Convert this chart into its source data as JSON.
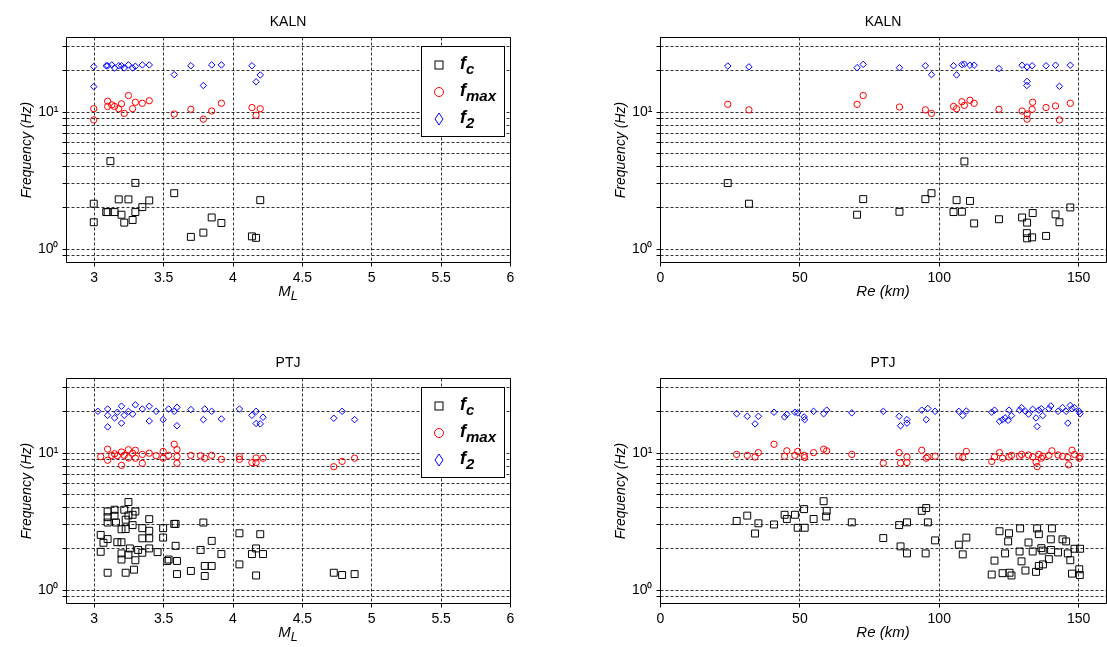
{
  "chart_data": [
    {
      "type": "scatter",
      "title": "KALN",
      "xlabel": "M$_{L}$",
      "ylabel": "Frequency (Hz)",
      "xlim": [
        2.8,
        6
      ],
      "xticks": [
        3,
        3.5,
        4,
        4.5,
        5,
        5.5,
        6
      ],
      "ylim": [
        0.8,
        35
      ],
      "yticks": [
        {
          "value": 0.9,
          "label": null
        },
        {
          "value": 1,
          "label": "10⁰"
        },
        {
          "value": 2,
          "label": null
        },
        {
          "value": 3,
          "label": null
        },
        {
          "value": 4,
          "label": null
        },
        {
          "value": 5,
          "label": null
        },
        {
          "value": 6,
          "label": null
        },
        {
          "value": 7,
          "label": null
        },
        {
          "value": 8,
          "label": null
        },
        {
          "value": 9,
          "label": null
        },
        {
          "value": 10,
          "label": "10¹"
        },
        {
          "value": 20,
          "label": null
        },
        {
          "value": 30,
          "label": null
        }
      ],
      "log": true,
      "grid": true,
      "legend": "top right",
      "series": [
        {
          "name": "f$_{c}$",
          "color": "#000000",
          "marker": "square",
          "x": [
            3.0,
            3.0,
            3.12,
            3.09,
            3.1,
            3.15,
            3.18,
            3.25,
            3.2,
            3.22,
            3.28,
            3.3,
            3.3,
            3.35,
            3.4,
            3.58,
            3.7,
            3.79,
            3.85,
            3.92,
            4.14,
            4.17,
            4.2
          ],
          "values": [
            2.13,
            1.56,
            4.35,
            1.85,
            1.85,
            1.85,
            2.29,
            2.29,
            1.77,
            1.55,
            1.62,
            3.02,
            1.85,
            2.01,
            2.25,
            2.54,
            1.22,
            1.31,
            1.69,
            1.54,
            1.23,
            1.2,
            2.26
          ]
        },
        {
          "name": "f$_{max}$",
          "color": "#ff0000",
          "marker": "circle",
          "x": [
            3.0,
            3.0,
            3.1,
            3.1,
            3.13,
            3.15,
            3.18,
            3.2,
            3.22,
            3.25,
            3.28,
            3.3,
            3.35,
            3.4,
            3.58,
            3.7,
            3.79,
            3.85,
            3.92,
            4.14,
            4.17,
            4.2
          ],
          "values": [
            10.5,
            8.7,
            11.9,
            10.9,
            11.2,
            10.9,
            10.5,
            11.4,
            9.7,
            13.1,
            10.5,
            11.7,
            11.5,
            12.0,
            9.6,
            10.4,
            8.8,
            10.1,
            11.5,
            10.7,
            9.4,
            10.5
          ]
        },
        {
          "name": "f$_{2}$",
          "color": "#0000ff",
          "marker": "diamond",
          "x": [
            3.0,
            3.0,
            3.09,
            3.1,
            3.13,
            3.15,
            3.18,
            3.2,
            3.22,
            3.25,
            3.28,
            3.3,
            3.35,
            3.4,
            3.58,
            3.7,
            3.79,
            3.85,
            3.92,
            4.14,
            4.17,
            4.2
          ],
          "values": [
            21.3,
            15.2,
            21.6,
            21.6,
            21.9,
            20.8,
            21.6,
            21.6,
            20.8,
            21.9,
            20.8,
            21.4,
            21.9,
            21.9,
            18.6,
            21.6,
            15.5,
            21.9,
            21.9,
            21.6,
            16.5,
            18.5
          ]
        }
      ]
    },
    {
      "type": "scatter",
      "title": "KALN",
      "xlabel": "Re  (km)",
      "ylabel": "Frequency (Hz)",
      "xlim": [
        0,
        160
      ],
      "xticks": [
        0,
        50,
        100,
        150
      ],
      "ylim": [
        0.8,
        35
      ],
      "yticks": [
        {
          "value": 0.9,
          "label": null
        },
        {
          "value": 1,
          "label": "10⁰"
        },
        {
          "value": 2,
          "label": null
        },
        {
          "value": 3,
          "label": null
        },
        {
          "value": 4,
          "label": null
        },
        {
          "value": 5,
          "label": null
        },
        {
          "value": 6,
          "label": null
        },
        {
          "value": 7,
          "label": null
        },
        {
          "value": 8,
          "label": null
        },
        {
          "value": 9,
          "label": null
        },
        {
          "value": 10,
          "label": "10¹"
        },
        {
          "value": 20,
          "label": null
        },
        {
          "value": 30,
          "label": null
        }
      ],
      "log": true,
      "grid": true,
      "series": [
        {
          "color": "#000000",
          "marker": "square",
          "x": [
            24.3,
            31.9,
            70.7,
            72.9,
            85.9,
            95.2,
            97.4,
            105.3,
            106.4,
            108.3,
            109.2,
            111.2,
            112.7,
            121.6,
            129.9,
            131.7,
            131.6,
            131.7,
            133.5,
            133.7,
            138.5,
            141.9,
            143.3,
            147.2
          ],
          "values": [
            3.01,
            2.13,
            1.77,
            2.3,
            1.86,
            2.3,
            2.54,
            1.85,
            2.26,
            1.86,
            4.33,
            2.23,
            1.53,
            1.64,
            1.69,
            1.55,
            1.3,
            1.19,
            1.21,
            1.82,
            1.24,
            1.78,
            1.56,
            2.0
          ]
        },
        {
          "color": "#ff0000",
          "marker": "circle",
          "x": [
            24.3,
            31.9,
            70.7,
            72.9,
            85.9,
            95.2,
            97.4,
            105.3,
            106.4,
            108.3,
            109.2,
            111.2,
            112.7,
            121.6,
            129.9,
            131.7,
            131.7,
            133.7,
            133.5,
            138.5,
            141.9,
            143.3,
            147.2
          ],
          "values": [
            11.3,
            10.3,
            11.3,
            13.1,
            10.8,
            10.3,
            9.7,
            10.9,
            10.5,
            11.8,
            11.1,
            12.1,
            11.5,
            10.4,
            10.1,
            9.6,
            8.8,
            11.7,
            10.4,
            10.7,
            11.0,
            8.7,
            11.5
          ]
        },
        {
          "color": "#0000ff",
          "marker": "diamond",
          "x": [
            24.3,
            31.9,
            70.7,
            72.9,
            85.9,
            95.2,
            97.4,
            105.3,
            106.4,
            108.3,
            109.2,
            111.2,
            112.7,
            121.6,
            129.9,
            131.7,
            131.7,
            131.6,
            133.5,
            138.5,
            141.9,
            143.3,
            147.2
          ],
          "values": [
            21.5,
            21.2,
            20.9,
            22.1,
            20.9,
            21.6,
            18.6,
            21.6,
            18.5,
            22.0,
            22.2,
            21.8,
            21.8,
            20.6,
            21.8,
            21.2,
            16.6,
            15.5,
            21.6,
            21.6,
            21.8,
            15.3,
            21.8
          ]
        }
      ]
    },
    {
      "type": "scatter",
      "title": "PTJ",
      "xlabel": "M$_{L}$",
      "ylabel": "Frequency (Hz)",
      "xlim": [
        2.8,
        6
      ],
      "xticks": [
        3,
        3.5,
        4,
        4.5,
        5,
        5.5,
        6
      ],
      "ylim": [
        0.8,
        35
      ],
      "yticks": [
        {
          "value": 0.9,
          "label": null
        },
        {
          "value": 1,
          "label": "10⁰"
        },
        {
          "value": 2,
          "label": null
        },
        {
          "value": 3,
          "label": null
        },
        {
          "value": 4,
          "label": null
        },
        {
          "value": 5,
          "label": null
        },
        {
          "value": 6,
          "label": null
        },
        {
          "value": 7,
          "label": null
        },
        {
          "value": 8,
          "label": null
        },
        {
          "value": 9,
          "label": null
        },
        {
          "value": 10,
          "label": "10¹"
        },
        {
          "value": 20,
          "label": null
        },
        {
          "value": 30,
          "label": null
        }
      ],
      "log": true,
      "grid": true,
      "legend": "top right",
      "series": [
        {
          "name": "f$_{c}$",
          "color": "#000000",
          "marker": "square",
          "x": [
            3.05,
            3.05,
            3.07,
            3.1,
            3.1,
            3.1,
            3.1,
            3.1,
            3.15,
            3.15,
            3.16,
            3.17,
            3.2,
            3.2,
            3.2,
            3.2,
            3.22,
            3.23,
            3.23,
            3.23,
            3.25,
            3.25,
            3.25,
            3.26,
            3.28,
            3.28,
            3.29,
            3.3,
            3.3,
            3.32,
            3.35,
            3.35,
            3.35,
            3.4,
            3.4,
            3.4,
            3.4,
            3.46,
            3.5,
            3.5,
            3.53,
            3.54,
            3.58,
            3.59,
            3.59,
            3.6,
            3.6,
            3.7,
            3.79,
            3.77,
            3.8,
            3.8,
            3.85,
            3.85,
            3.92,
            4.05,
            4.05,
            4.14,
            4.17,
            4.17,
            4.2,
            4.22,
            4.73,
            4.79,
            4.88
          ],
          "values": [
            2.51,
            1.89,
            2.2,
            2.34,
            3.72,
            3.38,
            3.09,
            1.33,
            3.83,
            3.46,
            3.09,
            2.22,
            2.22,
            2.76,
            1.84,
            1.66,
            3.83,
            3.24,
            2.77,
            1.33,
            1.8,
            4.36,
            3.48,
            2.0,
            2.96,
            3.52,
            1.4,
            3.72,
            1.64,
            1.95,
            2.81,
            2.37,
            1.86,
            3.27,
            2.69,
            2.37,
            2.0,
            1.88,
            2.81,
            2.4,
            1.62,
            1.66,
            3.02,
            3.02,
            2.09,
            1.62,
            1.3,
            1.37,
            3.09,
            1.95,
            1.26,
            1.49,
            1.49,
            2.27,
            1.82,
            2.58,
            1.53,
            1.82,
            2.0,
            1.27,
            2.54,
            1.82,
            1.33,
            1.28,
            1.3
          ]
        },
        {
          "name": "f$_{max}$",
          "color": "#ff0000",
          "marker": "circle",
          "x": [
            3.05,
            3.1,
            3.1,
            3.13,
            3.15,
            3.17,
            3.2,
            3.2,
            3.22,
            3.25,
            3.25,
            3.28,
            3.3,
            3.3,
            3.35,
            3.35,
            3.4,
            3.45,
            3.5,
            3.5,
            3.54,
            3.58,
            3.6,
            3.6,
            3.6,
            3.7,
            3.77,
            3.8,
            3.85,
            3.92,
            4.05,
            4.05,
            4.14,
            4.17,
            4.17,
            4.22,
            4.73,
            4.79,
            4.88
          ],
          "values": [
            9.35,
            10.6,
            8.8,
            9.55,
            9.8,
            9.5,
            8.07,
            10.1,
            9.55,
            10.5,
            9.14,
            9.9,
            10.4,
            9.1,
            9.7,
            8.35,
            9.9,
            9.5,
            10.2,
            9.1,
            9.55,
            11.5,
            10.5,
            9.35,
            8.35,
            9.55,
            9.5,
            9.1,
            9.55,
            8.93,
            9.35,
            8.93,
            8.44,
            9.14,
            8.44,
            9.1,
            7.89,
            8.63,
            9.1
          ]
        },
        {
          "name": "f$_{2}$",
          "color": "#0000ff",
          "marker": "diamond",
          "x": [
            3.03,
            3.1,
            3.1,
            3.1,
            3.15,
            3.17,
            3.2,
            3.2,
            3.22,
            3.25,
            3.28,
            3.3,
            3.35,
            3.4,
            3.4,
            3.45,
            3.5,
            3.54,
            3.58,
            3.6,
            3.6,
            3.7,
            3.79,
            3.8,
            3.85,
            3.92,
            4.05,
            4.14,
            4.17,
            4.17,
            4.2,
            4.22,
            4.73,
            4.79,
            4.88
          ],
          "values": [
            20.0,
            20.8,
            15.4,
            18.7,
            17.9,
            19.7,
            21.8,
            16.4,
            18.7,
            20.0,
            19.1,
            22.3,
            20.8,
            21.8,
            17.0,
            20.0,
            17.4,
            20.8,
            20.0,
            21.4,
            15.7,
            20.6,
            17.4,
            20.8,
            20.0,
            17.6,
            20.8,
            18.7,
            20.0,
            16.3,
            16.2,
            18.1,
            17.8,
            20.0,
            17.4
          ]
        }
      ]
    },
    {
      "type": "scatter",
      "title": "PTJ",
      "xlabel": "Re  (km)",
      "ylabel": "Frequency (Hz)",
      "xlim": [
        0,
        160
      ],
      "xticks": [
        0,
        50,
        100,
        150
      ],
      "ylim": [
        0.8,
        35
      ],
      "yticks": [
        {
          "value": 0.9,
          "label": null
        },
        {
          "value": 1,
          "label": "10⁰"
        },
        {
          "value": 2,
          "label": null
        },
        {
          "value": 3,
          "label": null
        },
        {
          "value": 4,
          "label": null
        },
        {
          "value": 5,
          "label": null
        },
        {
          "value": 6,
          "label": null
        },
        {
          "value": 7,
          "label": null
        },
        {
          "value": 8,
          "label": null
        },
        {
          "value": 9,
          "label": null
        },
        {
          "value": 10,
          "label": "10¹"
        },
        {
          "value": 20,
          "label": null
        },
        {
          "value": 30,
          "label": null
        }
      ],
      "log": true,
      "grid": true,
      "series": [
        {
          "color": "#000000",
          "marker": "square",
          "x": [
            27.5,
            31.3,
            34.1,
            35.3,
            40.9,
            44.7,
            45.5,
            48.4,
            49.4,
            51.7,
            51.9,
            55.1,
            58.7,
            59.6,
            59.8,
            68.8,
            80.1,
            85.8,
            86.3,
            88.6,
            88.6,
            93.9,
            95.5,
            96.1,
            95.3,
            98.7,
            107.2,
            108.6,
            109.9,
            119.0,
            120.0,
            121.8,
            122.9,
            123.8,
            124.9,
            125.2,
            125.4,
            126.1,
            129.0,
            129.2,
            129.7,
            131.1,
            132.2,
            133.7,
            134.9,
            135.3,
            135.9,
            135.9,
            136.8,
            137.3,
            137.4,
            139.5,
            140.2,
            140.3,
            140.6,
            142.8,
            144.4,
            145.7,
            146.3,
            147.2,
            147.8,
            148.7,
            150.4,
            150.7,
            150.6
          ],
          "values": [
            3.17,
            3.47,
            2.57,
            3.05,
            2.99,
            3.52,
            3.28,
            3.52,
            2.83,
            3.87,
            2.83,
            3.28,
            4.42,
            3.42,
            3.76,
            3.1,
            2.38,
            2.96,
            2.07,
            1.84,
            3.1,
            3.76,
            3.94,
            3.1,
            1.84,
            2.29,
            2.13,
            1.81,
            2.4,
            1.29,
            1.63,
            2.67,
            1.32,
            1.84,
            2.25,
            2.58,
            1.33,
            1.27,
            1.9,
            2.8,
            1.61,
            1.38,
            2.21,
            1.9,
            1.35,
            2.8,
            2.54,
            1.49,
            2.01,
            1.93,
            1.53,
            1.67,
            2.33,
            1.95,
            2.8,
            1.87,
            2.33,
            2.25,
            1.84,
            1.64,
            1.31,
            1.99,
            1.41,
            1.99,
            1.28
          ]
        },
        {
          "color": "#ff0000",
          "marker": "circle",
          "x": [
            27.5,
            31.3,
            34.1,
            35.3,
            40.9,
            44.7,
            45.5,
            48.4,
            49.4,
            51.7,
            51.9,
            55.1,
            58.7,
            59.8,
            68.8,
            80.1,
            85.8,
            86.3,
            88.6,
            88.6,
            93.9,
            95.5,
            96.1,
            98.7,
            107.2,
            108.6,
            109.9,
            119.0,
            120.0,
            121.8,
            122.9,
            125.2,
            126.1,
            129.0,
            129.7,
            132.2,
            133.7,
            134.9,
            135.3,
            135.9,
            136.8,
            137.3,
            139.5,
            140.6,
            142.8,
            144.4,
            146.3,
            146.6,
            147.8,
            148.7,
            150.4,
            150.7
          ],
          "values": [
            9.7,
            9.55,
            9.29,
            10.0,
            11.5,
            9.4,
            10.3,
            9.55,
            10.2,
            9.55,
            9.2,
            10.0,
            10.6,
            10.3,
            9.7,
            8.38,
            10.0,
            8.38,
            9.3,
            8.47,
            10.4,
            9.1,
            9.3,
            9.4,
            9.4,
            9.2,
            10.2,
            8.62,
            9.3,
            10.0,
            9.1,
            9.3,
            9.55,
            9.4,
            9.7,
            9.6,
            9.3,
            8.52,
            7.91,
            9.7,
            9.1,
            9.4,
            9.55,
            10.3,
            9.6,
            9.4,
            9.2,
            8.14,
            10.4,
            9.7,
            9.1,
            9.4
          ]
        },
        {
          "color": "#0000ff",
          "marker": "diamond",
          "x": [
            27.5,
            31.3,
            34.1,
            35.3,
            40.9,
            44.7,
            45.5,
            48.4,
            49.4,
            51.7,
            51.9,
            55.1,
            58.7,
            59.8,
            68.8,
            80.1,
            85.8,
            86.3,
            88.6,
            88.6,
            93.9,
            95.5,
            96.1,
            98.7,
            107.2,
            108.6,
            109.9,
            119.0,
            120.0,
            121.8,
            122.9,
            123.8,
            124.9,
            125.2,
            126.1,
            129.0,
            129.7,
            131.1,
            132.2,
            133.7,
            134.9,
            135.3,
            135.9,
            136.8,
            137.3,
            139.5,
            140.2,
            142.8,
            144.4,
            145.7,
            146.3,
            147.2,
            147.8,
            148.7,
            150.4,
            150.7
          ],
          "values": [
            19.2,
            18.4,
            16.2,
            18.4,
            19.7,
            18.2,
            19.0,
            19.7,
            19.5,
            18.2,
            17.4,
            20.0,
            19.2,
            20.4,
            19.5,
            20.0,
            18.4,
            15.7,
            17.4,
            16.4,
            20.4,
            17.4,
            21.0,
            20.0,
            20.0,
            18.6,
            20.1,
            19.7,
            20.4,
            16.9,
            17.4,
            17.9,
            17.2,
            20.4,
            18.6,
            20.4,
            21.3,
            20.0,
            19.1,
            20.7,
            17.9,
            15.5,
            20.4,
            20.9,
            18.6,
            20.9,
            21.9,
            20.0,
            21.3,
            20.0,
            16.4,
            22.1,
            20.9,
            21.3,
            20.0,
            19.2
          ]
        }
      ]
    }
  ]
}
